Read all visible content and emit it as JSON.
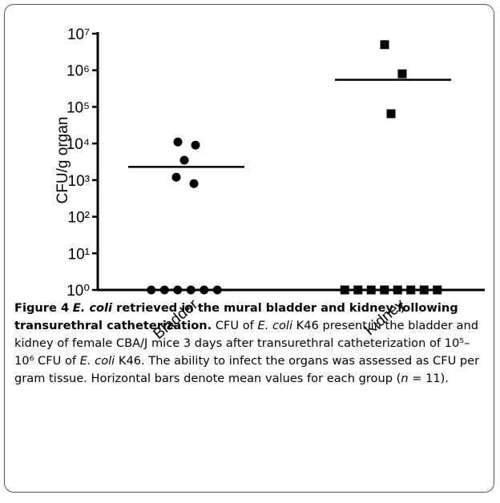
{
  "chart_data": {
    "type": "dot",
    "y_label": "CFU/g organ",
    "log_y": true,
    "categories": [
      "Bladder",
      "Kidney"
    ],
    "groups": [
      {
        "marker": "circle",
        "color": "#000000",
        "values": [
          11000,
          9000,
          3500,
          1200,
          800,
          1,
          1,
          1,
          1,
          1,
          1
        ],
        "mean": 2300
      },
      {
        "marker": "square",
        "color": "#000000",
        "values": [
          5000000,
          800000,
          65000,
          1,
          1,
          1,
          1,
          1,
          1,
          1,
          1
        ],
        "mean": 550000
      }
    ],
    "ylim": [
      1,
      10000000
    ],
    "yticks": [
      {
        "value": 1,
        "label": "10⁰"
      },
      {
        "value": 10,
        "label": "10¹"
      },
      {
        "value": 100,
        "label": "10²"
      },
      {
        "value": 1000,
        "label": "10³"
      },
      {
        "value": 10000,
        "label": "10⁴"
      },
      {
        "value": 100000,
        "label": "10⁵"
      },
      {
        "value": 1000000,
        "label": "10⁶"
      },
      {
        "value": 10000000,
        "label": "10⁷"
      }
    ]
  },
  "caption": {
    "label": "Figure 4",
    "title": [
      "E. coli",
      " retrieved in the mural bladder and kidney following transurethral catheterization."
    ],
    "body": [
      "CFU of ",
      "E. coli",
      " K46 present in the bladder and kidney of female CBA/J mice 3 days after transurethral catheterization of 10⁵–10⁶ CFU of ",
      "E. coli",
      " K46. The ability to infect the organs was assessed as CFU per gram tissue. Horizontal bars denote mean values for each group (",
      "n",
      " = 11)."
    ]
  }
}
